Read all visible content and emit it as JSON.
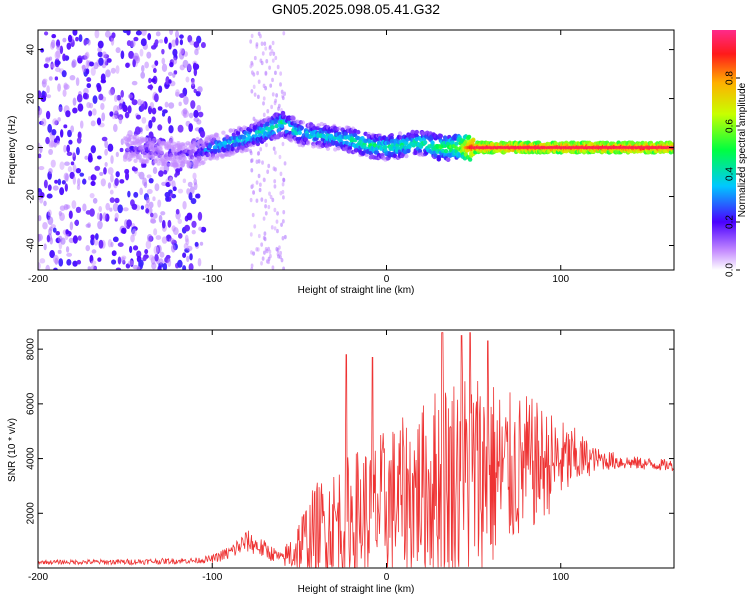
{
  "title": "GN05.2025.098.05.41.G32",
  "chart_data": [
    {
      "type": "heatmap",
      "name": "spectrogram",
      "xlabel": "Height of straight line (km)",
      "ylabel": "Frequency (Hz)",
      "xlim": [
        -200,
        165
      ],
      "ylim": [
        -50,
        48
      ],
      "xticks": [
        -200,
        -100,
        0,
        100
      ],
      "yticks": [
        -40,
        -20,
        0,
        20,
        40
      ],
      "tick_labels": {
        "x": [
          "-200",
          "-100",
          "0",
          "100"
        ],
        "y": [
          "-40",
          "-20",
          "0",
          "20",
          "40"
        ]
      },
      "ridge": {
        "x": [
          -200,
          -150,
          -130,
          -110,
          -100,
          -80,
          -65,
          -60,
          -50,
          -40,
          -30,
          -20,
          -10,
          0,
          10,
          20,
          30,
          40,
          50,
          100,
          165
        ],
        "y": [
          0,
          0,
          -2,
          -3,
          0,
          4,
          8,
          10,
          6,
          5,
          4,
          3,
          1,
          0,
          1,
          2,
          0,
          0,
          0,
          0,
          0
        ],
        "amp": [
          0.25,
          0.25,
          0.2,
          0.25,
          0.4,
          0.45,
          0.5,
          0.5,
          0.45,
          0.45,
          0.45,
          0.5,
          0.5,
          0.5,
          0.5,
          0.5,
          0.55,
          0.6,
          0.95,
          0.95,
          0.95
        ]
      },
      "colorbar": {
        "label": "Normalized spectral amplitude",
        "range": [
          0,
          1
        ],
        "ticks": [
          "0.0",
          "0.2",
          "0.4",
          "0.6",
          "0.8"
        ]
      }
    },
    {
      "type": "line",
      "name": "snr",
      "xlabel": "Height of straight line (km)",
      "ylabel": "SNR (10 * v/v)",
      "xlim": [
        -200,
        165
      ],
      "ylim": [
        0,
        8700
      ],
      "xticks": [
        -200,
        -100,
        0,
        100
      ],
      "yticks": [
        2000,
        4000,
        6000,
        8000
      ],
      "tick_labels": {
        "x": [
          "-200",
          "-100",
          "0",
          "100"
        ],
        "y": [
          "2000",
          "4000",
          "6000",
          "8000"
        ]
      },
      "series": [
        {
          "name": "SNR",
          "color": "#ee3333",
          "envelope_x": [
            -200,
            -150,
            -110,
            -100,
            -90,
            -80,
            -70,
            -60,
            -50,
            -40,
            -30,
            -20,
            -10,
            0,
            10,
            20,
            30,
            40,
            50,
            60,
            70,
            80,
            90,
            100,
            110,
            120,
            140,
            165
          ],
          "envelope_base": [
            200,
            200,
            250,
            300,
            500,
            900,
            600,
            300,
            500,
            1000,
            1200,
            1300,
            1500,
            1800,
            2000,
            2200,
            2400,
            2600,
            2600,
            2700,
            2900,
            3200,
            3400,
            3600,
            3800,
            3900,
            3800,
            3700
          ],
          "envelope_amp": [
            100,
            150,
            150,
            200,
            400,
            600,
            500,
            300,
            1800,
            2600,
            3000,
            3600,
            3700,
            4000,
            4200,
            4500,
            5300,
            5600,
            5800,
            5200,
            4200,
            3800,
            3000,
            2200,
            1500,
            600,
            350,
            300
          ],
          "peaks": [
            {
              "x": -23,
              "y": 7800
            },
            {
              "x": -8,
              "y": 7700
            },
            {
              "x": 32,
              "y": 8600
            },
            {
              "x": 43,
              "y": 8500
            },
            {
              "x": 48,
              "y": 8600
            },
            {
              "x": 58,
              "y": 8300
            }
          ]
        }
      ]
    }
  ]
}
